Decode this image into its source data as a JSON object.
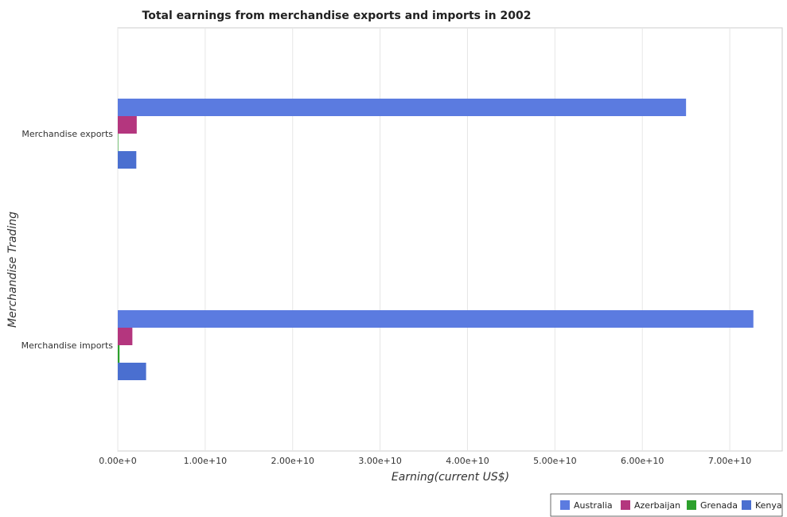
{
  "chart_data": {
    "type": "bar",
    "orientation": "horizontal",
    "title": "Total earnings from merchandise exports and imports in 2002",
    "xlabel": "Earning(current US$)",
    "ylabel": "Merchandise Trading",
    "categories": [
      "Merchandise exports",
      "Merchandise imports"
    ],
    "series": [
      {
        "name": "Australia",
        "color": "#5b7be0",
        "values": [
          65000000000.0,
          72700000000.0
        ]
      },
      {
        "name": "Azerbaijan",
        "color": "#b4367e",
        "values": [
          2170000000.0,
          1670000000.0
        ]
      },
      {
        "name": "Grenada",
        "color": "#2ca02c",
        "values": [
          40000000.0,
          200000000.0
        ]
      },
      {
        "name": "Kenya",
        "color": "#4a6fd0",
        "values": [
          2120000000.0,
          3240000000.0
        ]
      }
    ],
    "xlim": [
      0,
      76000000000.0
    ],
    "xticks": [
      0,
      10000000000.0,
      20000000000.0,
      30000000000.0,
      40000000000.0,
      50000000000.0,
      60000000000.0,
      70000000000.0
    ],
    "xtick_labels": [
      "0.00e+0",
      "1.00e+10",
      "2.00e+10",
      "3.00e+10",
      "4.00e+10",
      "5.00e+10",
      "6.00e+10",
      "7.00e+10"
    ],
    "grid": true,
    "legend_position": "bottom-right"
  }
}
